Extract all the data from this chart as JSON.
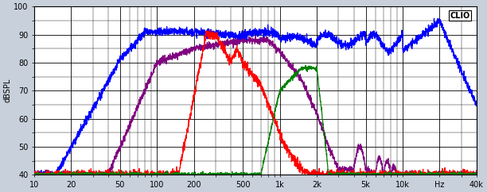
{
  "title": "CLIO",
  "ylabel": "dBSPL",
  "xmin": 10,
  "xmax": 40000,
  "ymin": 40,
  "ymax": 100,
  "yticks": [
    40,
    50,
    60,
    70,
    80,
    90,
    100
  ],
  "xtick_labels": [
    "10",
    "20",
    "50",
    "100",
    "200",
    "500",
    "1k",
    "2k",
    "5k",
    "10k",
    "Hz",
    "40k"
  ],
  "xtick_values": [
    10,
    20,
    50,
    100,
    200,
    500,
    1000,
    2000,
    5000,
    10000,
    20000,
    40000
  ],
  "background_color": "#c8d0dc",
  "plot_bg": "#ffffff",
  "grid_color": "#000000",
  "line_colors": {
    "blue": "#0000ff",
    "red": "#ff0000",
    "green": "#008000",
    "purple": "#800080"
  }
}
